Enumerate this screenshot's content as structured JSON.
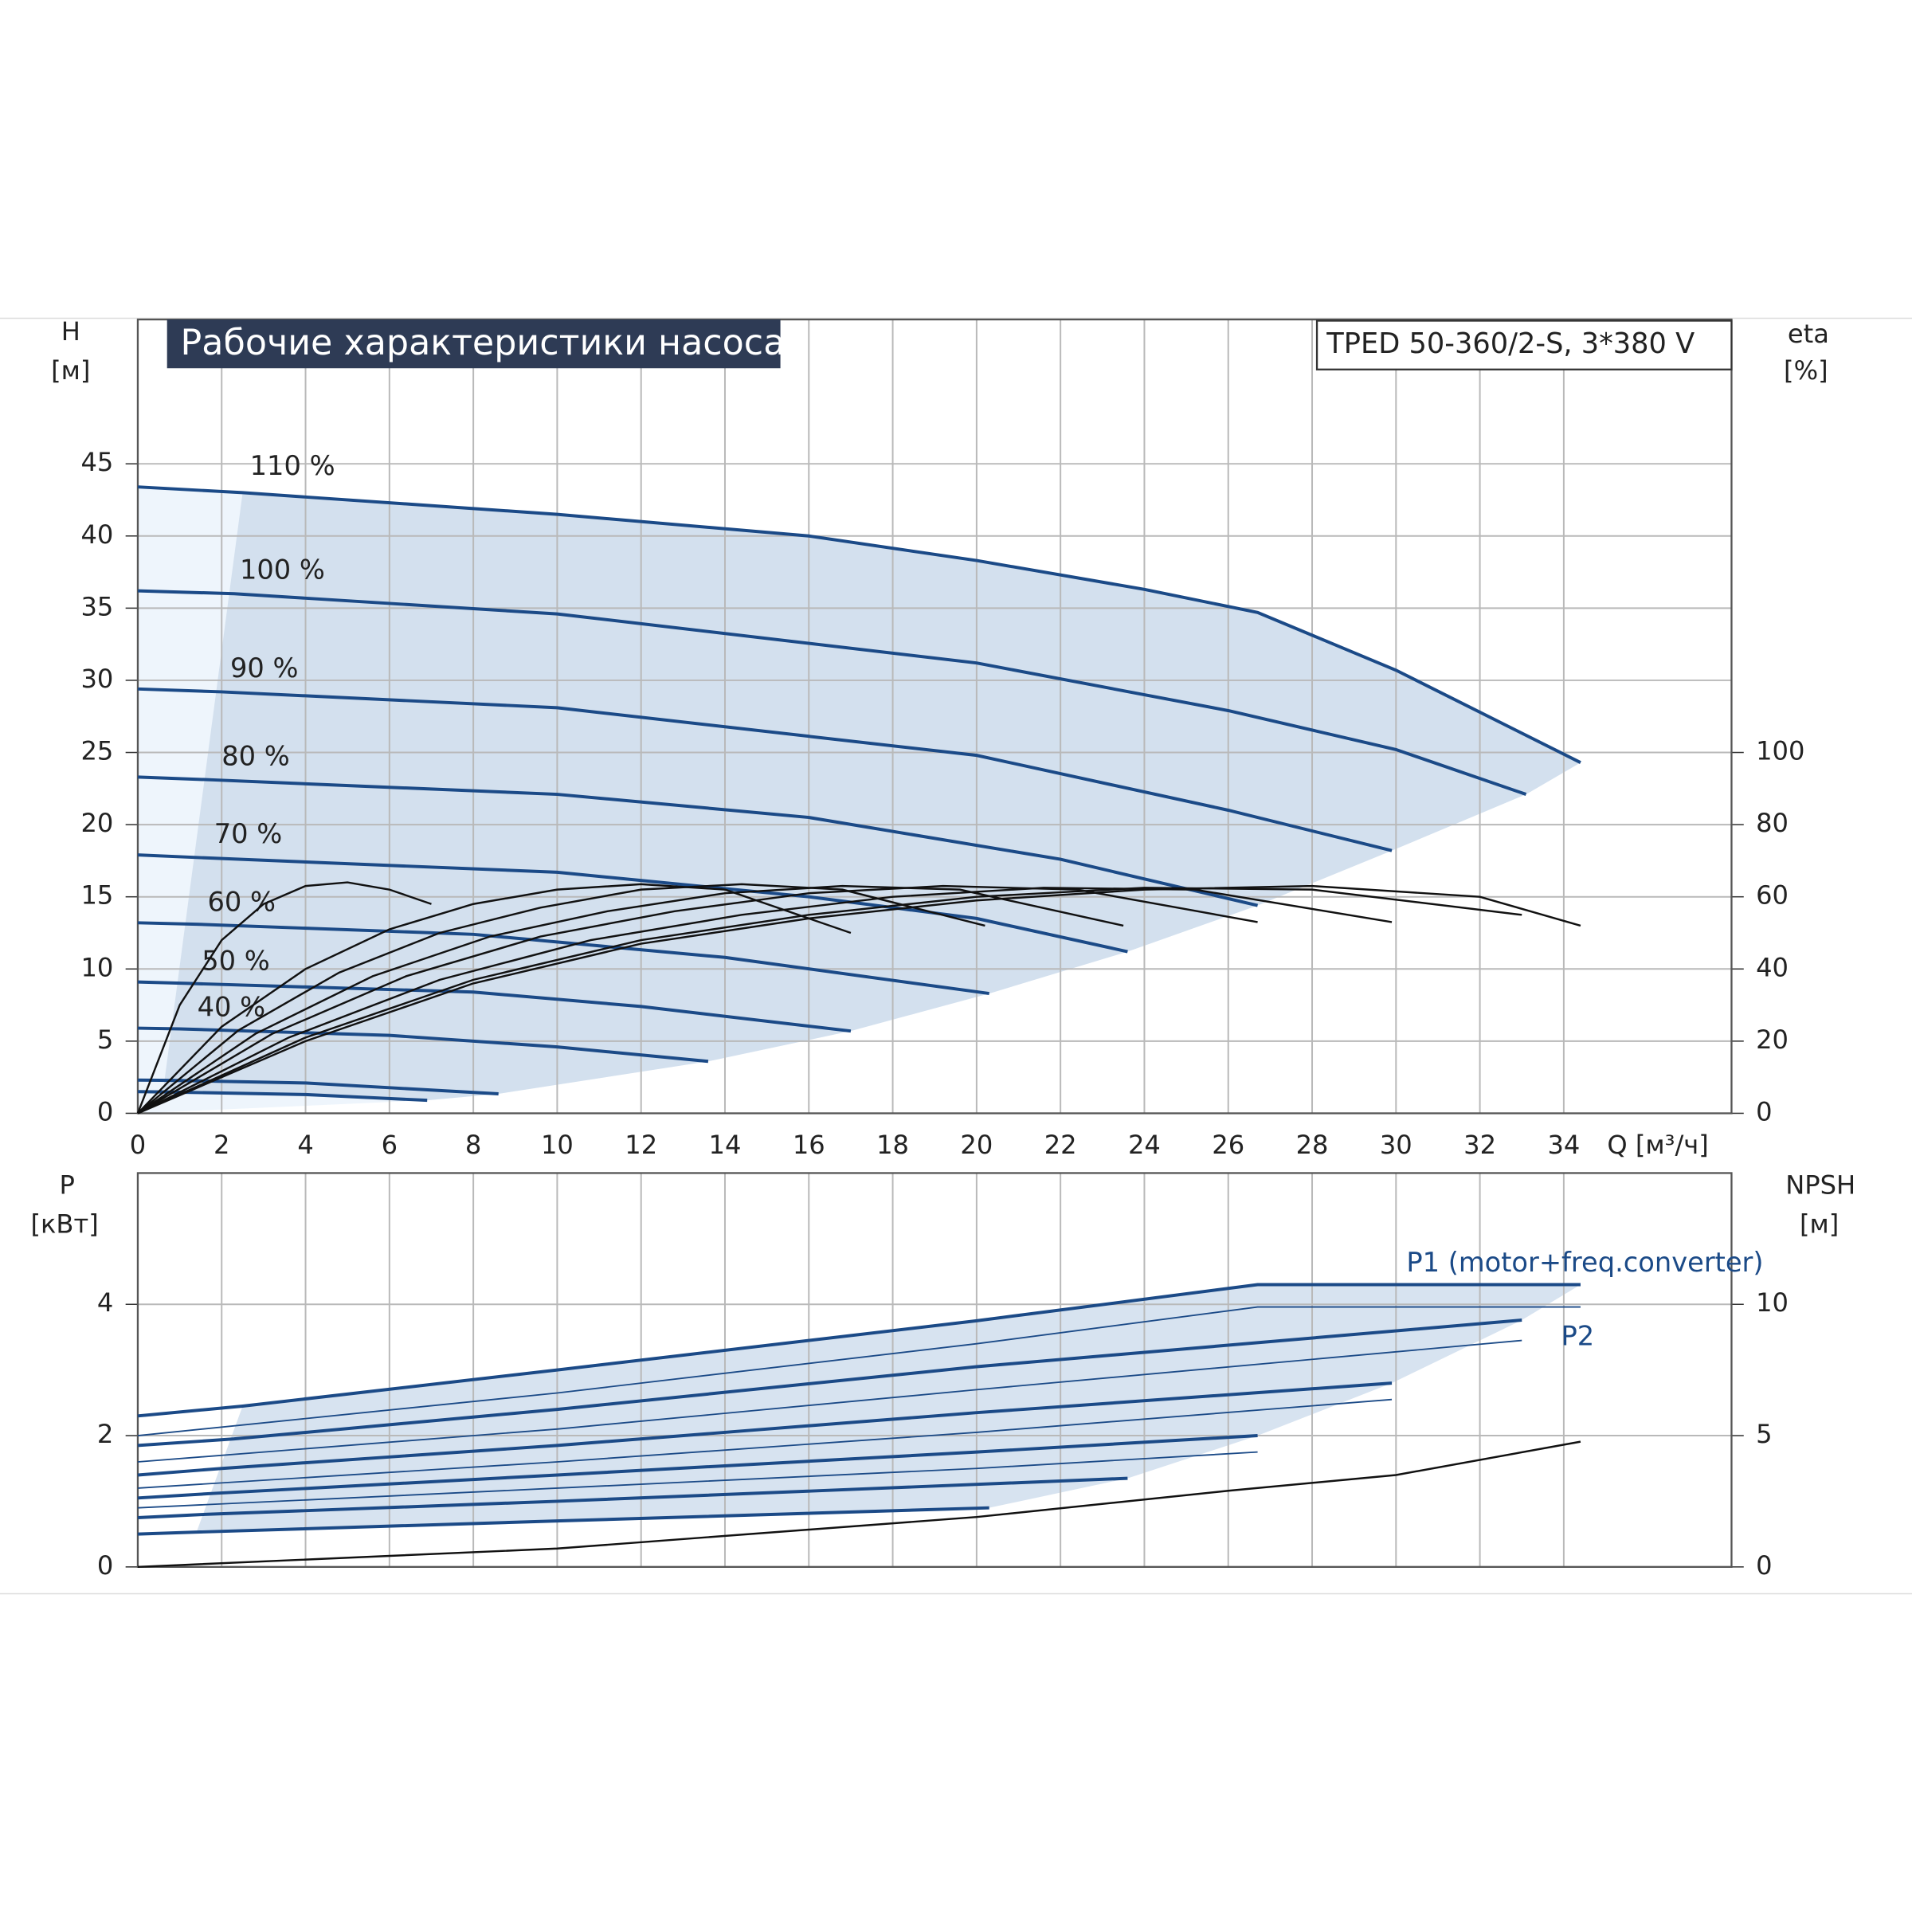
{
  "chart_data": [
    {
      "type": "line",
      "title": "Рабочие характеристики насоса",
      "subtitle": "TPED 50-360/2-S, 3*380 V",
      "x_label": "Q [м³/ч]",
      "y_label": "H",
      "y_unit": "[м]",
      "y2_label": "eta",
      "y2_unit": "[%]",
      "xlim": [
        0,
        38
      ],
      "xticks": [
        0,
        2,
        4,
        6,
        8,
        10,
        12,
        14,
        16,
        18,
        20,
        22,
        24,
        26,
        28,
        30,
        32,
        34
      ],
      "ylim": [
        0,
        55
      ],
      "yticks": [
        0,
        5,
        10,
        15,
        20,
        25,
        30,
        35,
        40,
        45
      ],
      "y2lim": [
        0,
        220
      ],
      "y2ticks": [
        0,
        20,
        40,
        60,
        80,
        100
      ],
      "grid": true,
      "series": [
        {
          "name": "110 %",
          "color": "#1b4a87",
          "x": [
            0,
            2.5,
            10,
            16,
            20,
            24,
            26.7,
            30,
            34.4
          ],
          "values": [
            43.4,
            43,
            41.5,
            40,
            38.3,
            36.3,
            34.7,
            30.7,
            24.3
          ]
        },
        {
          "name": "100 %",
          "color": "#1b4a87",
          "x": [
            0,
            2.3,
            10,
            20,
            26,
            30,
            33.1
          ],
          "values": [
            36.2,
            36,
            34.6,
            31.2,
            27.9,
            25.2,
            22.1
          ]
        },
        {
          "name": "90 %",
          "color": "#1b4a87",
          "x": [
            0,
            2,
            10,
            20,
            26,
            29.9
          ],
          "values": [
            29.4,
            29.2,
            28.1,
            24.8,
            21,
            18.2
          ]
        },
        {
          "name": "80 %",
          "color": "#1b4a87",
          "x": [
            0,
            1.8,
            10,
            16,
            22,
            26.7
          ],
          "values": [
            23.3,
            23.1,
            22.1,
            20.5,
            17.6,
            14.4
          ]
        },
        {
          "name": "70 %",
          "color": "#1b4a87",
          "x": [
            0,
            1.6,
            10,
            16,
            20,
            23.6
          ],
          "values": [
            17.9,
            17.7,
            16.7,
            15,
            13.5,
            11.2
          ]
        },
        {
          "name": "60 %",
          "color": "#1b4a87",
          "x": [
            0,
            1.4,
            8,
            14,
            20.3
          ],
          "values": [
            13.2,
            13.1,
            12.4,
            10.8,
            8.3
          ]
        },
        {
          "name": "50 %",
          "color": "#1b4a87",
          "x": [
            0,
            1.2,
            8,
            12,
            17
          ],
          "values": [
            9.1,
            9,
            8.4,
            7.4,
            5.7
          ]
        },
        {
          "name": "40 %",
          "color": "#1b4a87",
          "x": [
            0,
            1,
            6,
            10,
            13.6
          ],
          "values": [
            5.9,
            5.85,
            5.4,
            4.6,
            3.6
          ]
        },
        {
          "name": null,
          "color": "#1b4a87",
          "x": [
            0,
            0.8,
            4,
            8.6
          ],
          "values": [
            2.3,
            2.28,
            2.1,
            1.35
          ]
        },
        {
          "name": null,
          "color": "#1b4a87",
          "x": [
            0,
            0.6,
            4,
            6.9
          ],
          "values": [
            1.5,
            1.48,
            1.3,
            0.9
          ]
        },
        {
          "name": null,
          "color": "#111111",
          "axis": "y2",
          "x": [
            0,
            4,
            8,
            12,
            16,
            20,
            24,
            28,
            32,
            34.4
          ],
          "values": [
            0,
            20,
            36,
            47,
            54,
            59,
            62,
            63,
            60,
            52
          ]
        },
        {
          "name": null,
          "color": "#111111",
          "axis": "y2",
          "x": [
            0,
            4,
            8,
            12,
            16,
            20,
            24,
            28,
            33
          ],
          "values": [
            0,
            21,
            37,
            48,
            55,
            60,
            62.5,
            62,
            55
          ]
        },
        {
          "name": null,
          "color": "#111111",
          "axis": "y2",
          "x": [
            0,
            3.6,
            7.2,
            10.8,
            14.4,
            18,
            21.6,
            25.2,
            29.9
          ],
          "values": [
            0,
            21,
            37,
            48,
            55,
            60,
            62.5,
            62,
            53
          ]
        },
        {
          "name": null,
          "color": "#111111",
          "axis": "y2",
          "x": [
            0,
            3.2,
            6.4,
            9.6,
            12.8,
            16,
            19.2,
            22.4,
            26.7
          ],
          "values": [
            0,
            22,
            38,
            49,
            56,
            61,
            63,
            62,
            53
          ]
        },
        {
          "name": null,
          "color": "#111111",
          "axis": "y2",
          "x": [
            0,
            2.8,
            5.6,
            8.4,
            11.2,
            14,
            16.8,
            19.6,
            23.5
          ],
          "values": [
            0,
            22,
            38,
            49,
            56,
            61,
            63,
            62,
            52
          ]
        },
        {
          "name": null,
          "color": "#111111",
          "axis": "y2",
          "x": [
            0,
            2.4,
            4.8,
            7.2,
            9.6,
            12,
            14.4,
            16.8,
            20.2
          ],
          "values": [
            0,
            23,
            39,
            50,
            57,
            62,
            63.5,
            62,
            52
          ]
        },
        {
          "name": null,
          "color": "#111111",
          "axis": "y2",
          "x": [
            0,
            2,
            4,
            6,
            8,
            10,
            12,
            14,
            17
          ],
          "values": [
            0,
            24,
            40,
            51,
            58,
            62,
            63.5,
            62,
            50
          ]
        },
        {
          "name": null,
          "color": "#111111",
          "axis": "y2",
          "x": [
            0,
            1,
            2,
            3,
            4,
            5,
            6,
            7
          ],
          "values": [
            0,
            30,
            48,
            58,
            63,
            64,
            62,
            58
          ]
        }
      ]
    },
    {
      "type": "line",
      "y_label": "P",
      "y_unit": "[кВт]",
      "y2_label": "NPSH",
      "y2_unit": "[м]",
      "xlim": [
        0,
        38
      ],
      "ylim": [
        0,
        6
      ],
      "yticks": [
        0,
        2,
        4
      ],
      "y2lim": [
        0,
        15
      ],
      "y2ticks": [
        0,
        5,
        10
      ],
      "grid": true,
      "series": [
        {
          "name": "P1 (motor+freq.converter)",
          "color": "#1b4a87",
          "x": [
            0,
            2.5,
            10,
            20,
            26.7,
            34.4
          ],
          "values": [
            2.3,
            2.45,
            3,
            3.75,
            4.3,
            4.3
          ]
        },
        {
          "name": null,
          "color": "#1b4a87",
          "x": [
            0,
            2.3,
            10,
            20,
            33
          ],
          "values": [
            1.85,
            1.95,
            2.4,
            3.05,
            3.76
          ]
        },
        {
          "name": null,
          "color": "#1b4a87",
          "x": [
            0,
            2,
            10,
            20,
            29.9
          ],
          "values": [
            1.4,
            1.5,
            1.85,
            2.35,
            2.8
          ]
        },
        {
          "name": null,
          "color": "#1b4a87",
          "x": [
            0,
            1.8,
            10,
            20,
            26.7
          ],
          "values": [
            1.05,
            1.12,
            1.4,
            1.75,
            2
          ]
        },
        {
          "name": null,
          "color": "#1b4a87",
          "x": [
            0,
            1.6,
            10,
            23.6
          ],
          "values": [
            0.75,
            0.8,
            1,
            1.35
          ]
        },
        {
          "name": null,
          "color": "#1b4a87",
          "x": [
            0,
            1.4,
            10,
            20.3
          ],
          "values": [
            0.5,
            0.53,
            0.7,
            0.9
          ]
        },
        {
          "name": "P2",
          "color": "#1b4a87",
          "width": 1.2,
          "x": [
            0,
            10,
            20,
            26.7,
            34.4
          ],
          "values": [
            2,
            2.65,
            3.4,
            3.96,
            3.96
          ]
        },
        {
          "name": null,
          "color": "#1b4a87",
          "width": 1.2,
          "x": [
            0,
            10,
            20,
            33
          ],
          "values": [
            1.6,
            2.1,
            2.7,
            3.45
          ]
        },
        {
          "name": null,
          "color": "#1b4a87",
          "width": 1.2,
          "x": [
            0,
            10,
            20,
            29.9
          ],
          "values": [
            1.2,
            1.6,
            2.05,
            2.55
          ]
        },
        {
          "name": null,
          "color": "#1b4a87",
          "width": 1.2,
          "x": [
            0,
            10,
            20,
            26.7
          ],
          "values": [
            0.9,
            1.2,
            1.5,
            1.75
          ]
        },
        {
          "name": null,
          "color": "#111111",
          "axis": "y2",
          "x": [
            0,
            10,
            20,
            26,
            30,
            34.4
          ],
          "values": [
            0,
            0.7,
            1.9,
            2.9,
            3.5,
            4.77
          ]
        }
      ]
    }
  ]
}
